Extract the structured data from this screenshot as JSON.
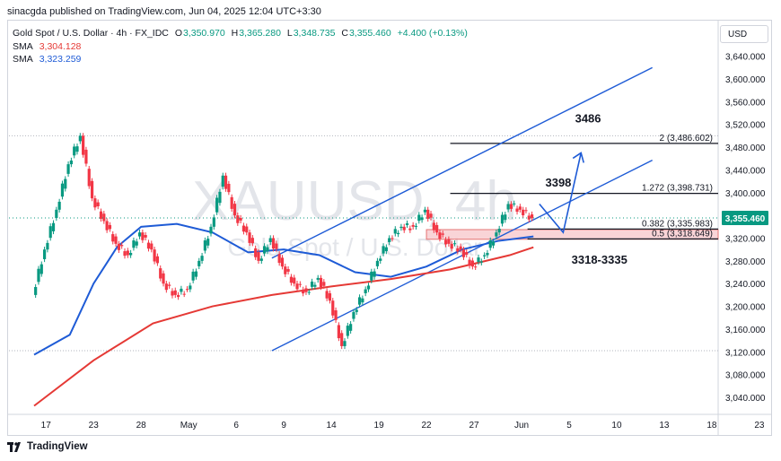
{
  "publisher": "sinacgda published on TradingView.com, Jun 04, 2025 12:04 UTC+3:30",
  "symbol_line": {
    "name": "Gold Spot / U.S. Dollar · 4h · FX_IDC",
    "open": {
      "k": "O",
      "v": "3,350.970"
    },
    "high": {
      "k": "H",
      "v": "3,365.280"
    },
    "low": {
      "k": "L",
      "v": "3,348.735"
    },
    "close": {
      "k": "C",
      "v": "3,355.460"
    },
    "change": "+4.400 (+0.13%)"
  },
  "sma_lines": [
    {
      "label": "SMA",
      "value": "3,304.128",
      "color": "#e53935"
    },
    {
      "label": "SMA",
      "value": "3,323.259",
      "color": "#1e5bd6"
    }
  ],
  "currency_button": "USD",
  "watermark": {
    "ticker": "XAUUSD, 4h",
    "name": "Gold Spot / U.S. Dollar"
  },
  "footer_brand": "TradingView",
  "annotations": {
    "target_high": "3486",
    "target_mid": "3398",
    "zone": "3318-3335"
  },
  "chart_data": {
    "type": "line",
    "title": "",
    "price_axis": {
      "range": [
        3010,
        3660
      ],
      "ticks": [
        "3,640.000",
        "3,600.000",
        "3,560.000",
        "3,520.000",
        "3,480.000",
        "3,440.000",
        "3,400.000",
        "3,360.000",
        "3,320.000",
        "3,280.000",
        "3,240.000",
        "3,200.000",
        "3,160.000",
        "3,120.000",
        "3,080.000",
        "3,040.000"
      ],
      "tick_values": [
        3640,
        3600,
        3560,
        3520,
        3480,
        3440,
        3400,
        3360,
        3320,
        3280,
        3240,
        3200,
        3160,
        3120,
        3080,
        3040
      ],
      "current_price_label": "3,355.460",
      "current_price": 3355.46
    },
    "time_axis": {
      "range": [
        0,
        68
      ],
      "labels": [
        "17",
        "23",
        "28",
        "May",
        "6",
        "9",
        "14",
        "19",
        "22",
        "27",
        "Jun",
        "5",
        "10",
        "13",
        "18",
        "23"
      ],
      "label_positions": [
        1,
        5,
        9,
        13,
        17,
        21,
        25,
        29,
        33,
        37,
        41,
        45,
        49,
        53,
        57,
        61
      ]
    },
    "close_series": [
      {
        "name": "",
        "x": [
          0,
          1,
          2,
          3,
          4,
          5,
          6,
          7,
          8,
          9,
          10,
          11,
          12,
          13,
          14,
          15,
          16,
          17,
          18,
          19,
          20,
          21,
          22,
          23,
          24,
          25,
          26,
          27,
          28,
          29,
          30,
          31,
          32,
          33,
          34,
          35,
          36,
          37,
          38,
          39,
          40,
          41,
          42,
          43,
          44,
          45
        ],
        "y": [
          3220,
          3300,
          3370,
          3450,
          3500,
          3390,
          3350,
          3310,
          3290,
          3330,
          3300,
          3240,
          3220,
          3230,
          3280,
          3340,
          3430,
          3360,
          3330,
          3280,
          3320,
          3270,
          3240,
          3225,
          3250,
          3210,
          3130,
          3190,
          3230,
          3280,
          3320,
          3340,
          3340,
          3370,
          3330,
          3310,
          3300,
          3270,
          3290,
          3330,
          3380,
          3370,
          3355,
          3355,
          3355,
          3355
        ]
      }
    ],
    "sma_series": [
      {
        "name": "SMA",
        "value_label": "3,304.128",
        "color": "#e53935",
        "x": [
          0,
          5,
          10,
          15,
          20,
          25,
          30,
          35,
          40,
          42
        ],
        "y": [
          3025,
          3105,
          3170,
          3200,
          3220,
          3235,
          3248,
          3265,
          3290,
          3304
        ]
      },
      {
        "name": "SMA",
        "value_label": "3,323.259",
        "color": "#1e5bd6",
        "x": [
          0,
          3,
          5,
          7,
          9,
          12,
          15,
          18,
          21,
          24,
          27,
          30,
          33,
          36,
          39,
          42
        ],
        "y": [
          3115,
          3150,
          3240,
          3305,
          3340,
          3345,
          3330,
          3295,
          3300,
          3290,
          3260,
          3252,
          3270,
          3300,
          3315,
          3323
        ]
      }
    ],
    "channel": {
      "upper": {
        "x": [
          20,
          52
        ],
        "y": [
          3285,
          3620
        ]
      },
      "lower": {
        "x": [
          20,
          52
        ],
        "y": [
          3122,
          3457
        ]
      }
    },
    "fib_levels": [
      {
        "label": "2 (3,486.602)",
        "value": 3486.602
      },
      {
        "label": "1.272 (3,398.731)",
        "value": 3398.731
      },
      {
        "label": "0.382 (3,335.983)",
        "value": 3335.983
      },
      {
        "label": "0.5 (3,318.649)",
        "value": 3318.649
      }
    ],
    "zone": {
      "from": 3318,
      "to": 3335
    },
    "projection": {
      "x": [
        42.5,
        44.5,
        46
      ],
      "y": [
        3380,
        3330,
        3470
      ]
    }
  }
}
